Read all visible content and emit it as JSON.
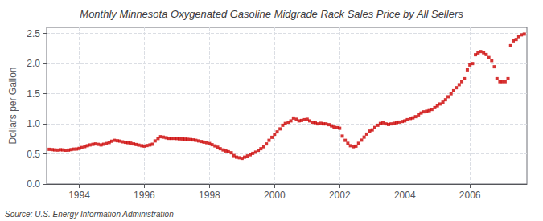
{
  "chart_data": {
    "type": "scatter",
    "title": "Monthly Minnesota Oxygenated Gasoline Midgrade Rack Sales Price by All Sellers",
    "y_label": "Dollars per Gallon",
    "annotations": [
      "Source: U.S. Energy Information Administration"
    ],
    "color": "#CC0000",
    "marker": "square",
    "grid": true,
    "xlim": [
      1993.0,
      2007.75
    ],
    "xticks": [
      1994,
      1996,
      1998,
      2000,
      2002,
      2004,
      2006
    ],
    "ylim": [
      0.0,
      2.6
    ],
    "yticks": [
      {
        "value": 0.0,
        "label": "0.0"
      },
      0.5,
      {
        "value": 1.0,
        "label": "1.0"
      },
      1.5,
      {
        "value": 2.0,
        "label": "2.0"
      },
      2.5
    ],
    "x": [
      1993.08,
      1993.17,
      1993.25,
      1993.33,
      1993.42,
      1993.5,
      1993.58,
      1993.67,
      1993.75,
      1993.83,
      1993.92,
      1994.0,
      1994.08,
      1994.17,
      1994.25,
      1994.33,
      1994.42,
      1994.5,
      1994.58,
      1994.67,
      1994.75,
      1994.83,
      1994.92,
      1995.0,
      1995.08,
      1995.17,
      1995.25,
      1995.33,
      1995.42,
      1995.5,
      1995.58,
      1995.67,
      1995.75,
      1995.83,
      1995.92,
      1996.0,
      1996.08,
      1996.17,
      1996.25,
      1996.33,
      1996.42,
      1996.5,
      1996.58,
      1996.67,
      1996.75,
      1996.83,
      1996.92,
      1997.0,
      1997.08,
      1997.17,
      1997.25,
      1997.33,
      1997.42,
      1997.5,
      1997.58,
      1997.67,
      1997.75,
      1997.83,
      1997.92,
      1998.0,
      1998.08,
      1998.17,
      1998.25,
      1998.33,
      1998.42,
      1998.5,
      1998.58,
      1998.67,
      1998.75,
      1998.83,
      1998.92,
      1999.0,
      1999.08,
      1999.17,
      1999.25,
      1999.33,
      1999.42,
      1999.5,
      1999.58,
      1999.67,
      1999.75,
      1999.83,
      1999.92,
      2000.0,
      2000.08,
      2000.17,
      2000.25,
      2000.33,
      2000.42,
      2000.5,
      2000.58,
      2000.67,
      2000.75,
      2000.83,
      2000.92,
      2001.0,
      2001.08,
      2001.17,
      2001.25,
      2001.33,
      2001.42,
      2001.5,
      2001.58,
      2001.67,
      2001.75,
      2001.83,
      2001.92,
      2002.0,
      2002.08,
      2002.17,
      2002.25,
      2002.33,
      2002.42,
      2002.5,
      2002.58,
      2002.67,
      2002.75,
      2002.83,
      2002.92,
      2003.0,
      2003.08,
      2003.17,
      2003.25,
      2003.33,
      2003.42,
      2003.5,
      2003.58,
      2003.67,
      2003.75,
      2003.83,
      2003.92,
      2004.0,
      2004.08,
      2004.17,
      2004.25,
      2004.33,
      2004.42,
      2004.5,
      2004.58,
      2004.67,
      2004.75,
      2004.83,
      2004.92,
      2005.0,
      2005.08,
      2005.17,
      2005.25,
      2005.33,
      2005.42,
      2005.5,
      2005.58,
      2005.67,
      2005.75,
      2005.83,
      2005.92,
      2006.0,
      2006.08,
      2006.17,
      2006.25,
      2006.33,
      2006.42,
      2006.5,
      2006.58,
      2006.67,
      2006.75,
      2006.83,
      2006.92,
      2007.0,
      2007.08,
      2007.17,
      2007.25,
      2007.33,
      2007.42,
      2007.5,
      2007.58,
      2007.67
    ],
    "values": [
      0.575,
      0.57,
      0.565,
      0.562,
      0.568,
      0.565,
      0.56,
      0.562,
      0.57,
      0.578,
      0.58,
      0.59,
      0.605,
      0.62,
      0.635,
      0.648,
      0.658,
      0.665,
      0.658,
      0.648,
      0.66,
      0.672,
      0.688,
      0.71,
      0.725,
      0.718,
      0.712,
      0.7,
      0.692,
      0.685,
      0.678,
      0.665,
      0.655,
      0.645,
      0.635,
      0.628,
      0.638,
      0.648,
      0.66,
      0.715,
      0.755,
      0.785,
      0.778,
      0.768,
      0.758,
      0.758,
      0.758,
      0.755,
      0.75,
      0.748,
      0.745,
      0.742,
      0.738,
      0.732,
      0.725,
      0.715,
      0.705,
      0.695,
      0.685,
      0.672,
      0.652,
      0.632,
      0.61,
      0.585,
      0.565,
      0.548,
      0.535,
      0.518,
      0.472,
      0.445,
      0.435,
      0.425,
      0.445,
      0.465,
      0.485,
      0.508,
      0.528,
      0.558,
      0.585,
      0.618,
      0.665,
      0.725,
      0.775,
      0.825,
      0.865,
      0.915,
      0.975,
      1.005,
      1.025,
      1.048,
      1.095,
      1.075,
      1.048,
      1.055,
      1.068,
      1.075,
      1.048,
      1.025,
      1.018,
      0.998,
      1.008,
      0.998,
      0.998,
      0.985,
      0.965,
      0.945,
      0.935,
      0.925,
      0.795,
      0.725,
      0.675,
      0.635,
      0.618,
      0.628,
      0.675,
      0.728,
      0.778,
      0.828,
      0.878,
      0.898,
      0.938,
      0.975,
      1.005,
      1.015,
      0.998,
      0.988,
      0.998,
      1.008,
      1.018,
      1.028,
      1.038,
      1.048,
      1.068,
      1.088,
      1.098,
      1.118,
      1.148,
      1.178,
      1.198,
      1.208,
      1.218,
      1.238,
      1.268,
      1.298,
      1.328,
      1.358,
      1.398,
      1.448,
      1.498,
      1.548,
      1.598,
      1.648,
      1.698,
      1.748,
      1.895,
      1.975,
      1.998,
      2.145,
      2.175,
      2.198,
      2.178,
      2.148,
      2.098,
      2.048,
      1.945,
      1.748,
      1.698,
      1.698,
      1.698,
      1.748,
      2.295,
      2.375,
      2.398,
      2.445,
      2.475,
      2.488
    ]
  }
}
